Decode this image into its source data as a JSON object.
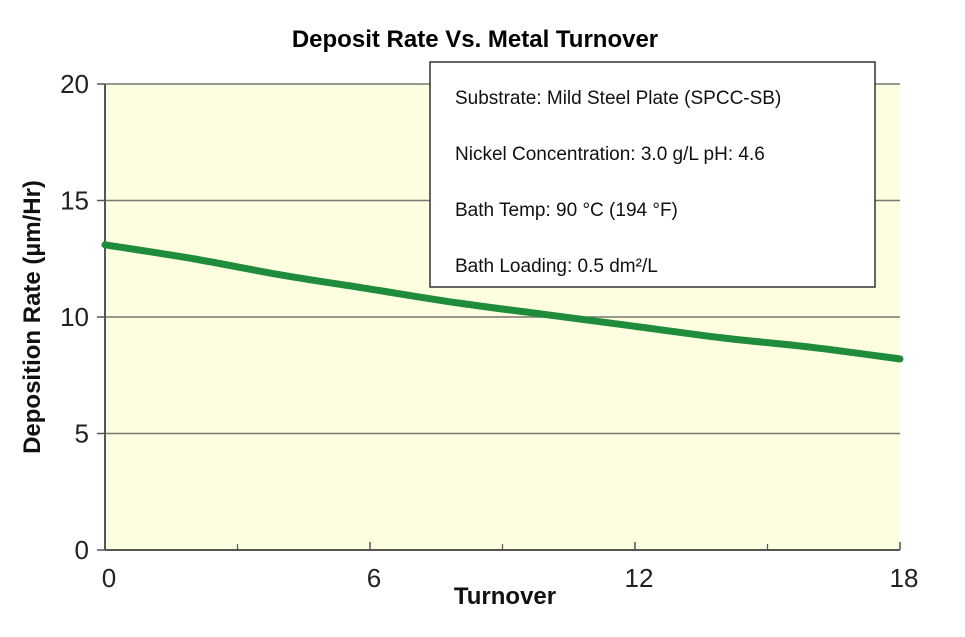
{
  "chart_data": {
    "type": "line",
    "title": "Deposit Rate Vs. Metal Turnover",
    "xlabel": "Turnover",
    "ylabel": "Deposition Rate (µm/Hr)",
    "xlim": [
      0,
      18
    ],
    "ylim": [
      0,
      20
    ],
    "xticks": [
      "0",
      "6",
      "12",
      "18"
    ],
    "yticks": [
      "0",
      "5",
      "10",
      "15",
      "20"
    ],
    "grid": true,
    "background_color": "#fdfde0",
    "series": [
      {
        "color": "#1e8c3a",
        "x": [
          0,
          2,
          4,
          6,
          8,
          10,
          12,
          14,
          16,
          18
        ],
        "y": [
          13.1,
          12.5,
          11.8,
          11.2,
          10.6,
          10.1,
          9.6,
          9.1,
          8.7,
          8.2
        ]
      }
    ],
    "annotations": [
      "Substrate: Mild Steel Plate (SPCC-SB)",
      "Nickel Concentration: 3.0 g/L pH: 4.6",
      "Bath Temp: 90 °C (194 °F)",
      "Bath Loading: 0.5 dm²/L"
    ]
  }
}
